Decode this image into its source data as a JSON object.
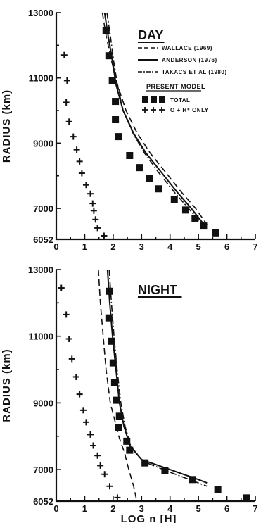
{
  "chart_data": [
    {
      "type": "scatter",
      "panel": "day",
      "title": "DAY",
      "xlabel": "",
      "ylabel": "RADIUS (km)",
      "xlim": [
        0,
        7
      ],
      "ylim": [
        6052,
        13000
      ],
      "x_ticks": [
        "0",
        "1",
        "2",
        "3",
        "4",
        "5",
        "6",
        "7"
      ],
      "y_ticks": [
        {
          "value": 6052,
          "label": "6052"
        },
        {
          "value": 7000,
          "label": "7000"
        },
        {
          "value": 9000,
          "label": "9000"
        },
        {
          "value": 11000,
          "label": "11000"
        },
        {
          "value": 13000,
          "label": "13000"
        }
      ],
      "legend": {
        "lines": [
          {
            "name": "WALLACE (1969)",
            "style": "dashed"
          },
          {
            "name": "ANDERSON (1976)",
            "style": "solid"
          },
          {
            "name": "TAKACS ET AL (1980)",
            "style": "dashdot"
          }
        ],
        "model_header": "PRESENT MODEL",
        "markers": [
          {
            "symbol": "square",
            "label": "TOTAL"
          },
          {
            "symbol": "plus",
            "label": "O + H⁺ ONLY"
          }
        ]
      },
      "series": [
        {
          "style": "dashed",
          "points": [
            [
              1.62,
              13000
            ],
            [
              1.75,
              12300
            ],
            [
              1.95,
              11500
            ],
            [
              2.15,
              10800
            ],
            [
              2.45,
              10000
            ],
            [
              2.85,
              9300
            ],
            [
              3.3,
              8700
            ],
            [
              3.85,
              8100
            ],
            [
              4.4,
              7500
            ],
            [
              4.9,
              7000
            ],
            [
              5.3,
              6500
            ]
          ]
        },
        {
          "style": "solid",
          "points": [
            [
              1.7,
              13000
            ],
            [
              1.82,
              12300
            ],
            [
              1.98,
              11500
            ],
            [
              2.1,
              10800
            ],
            [
              2.35,
              10000
            ],
            [
              2.72,
              9300
            ],
            [
              3.15,
              8700
            ],
            [
              3.7,
              8100
            ],
            [
              4.25,
              7500
            ],
            [
              4.75,
              7000
            ],
            [
              5.2,
              6500
            ]
          ]
        },
        {
          "style": "dashdot",
          "points": [
            [
              1.78,
              13000
            ],
            [
              1.9,
              12300
            ],
            [
              2.02,
              11500
            ],
            [
              2.15,
              10800
            ],
            [
              2.35,
              10000
            ],
            [
              2.7,
              9300
            ],
            [
              3.1,
              8700
            ],
            [
              3.6,
              8100
            ],
            [
              4.15,
              7500
            ],
            [
              4.65,
              7000
            ],
            [
              5.15,
              6500
            ]
          ]
        },
        {
          "style": "square",
          "points": [
            [
              1.75,
              12450
            ],
            [
              1.85,
              11680
            ],
            [
              1.97,
              10920
            ],
            [
              2.08,
              10280
            ],
            [
              2.08,
              9720
            ],
            [
              2.18,
              9200
            ],
            [
              2.58,
              8620
            ],
            [
              2.92,
              8250
            ],
            [
              3.28,
              7920
            ],
            [
              3.6,
              7600
            ],
            [
              4.15,
              7270
            ],
            [
              4.55,
              6950
            ],
            [
              4.88,
              6700
            ],
            [
              5.18,
              6460
            ],
            [
              5.6,
              6250
            ]
          ]
        },
        {
          "style": "plus",
          "points": [
            [
              0.28,
              11700
            ],
            [
              0.38,
              10920
            ],
            [
              0.35,
              10250
            ],
            [
              0.45,
              9660
            ],
            [
              0.6,
              9200
            ],
            [
              0.72,
              8800
            ],
            [
              0.82,
              8440
            ],
            [
              0.9,
              8080
            ],
            [
              1.05,
              7720
            ],
            [
              1.2,
              7450
            ],
            [
              1.28,
              7150
            ],
            [
              1.32,
              6930
            ],
            [
              1.38,
              6660
            ],
            [
              1.45,
              6400
            ],
            [
              1.68,
              6160
            ]
          ]
        }
      ]
    },
    {
      "type": "scatter",
      "panel": "night",
      "title": "NIGHT",
      "xlabel": "LOG n [H]",
      "ylabel": "RADIUS (km)",
      "xlim": [
        0,
        7
      ],
      "ylim": [
        6052,
        13000
      ],
      "x_ticks": [
        "0",
        "1",
        "2",
        "3",
        "4",
        "5",
        "6",
        "7"
      ],
      "y_ticks": [
        {
          "value": 6052,
          "label": "6052"
        },
        {
          "value": 7000,
          "label": "7000"
        },
        {
          "value": 9000,
          "label": "9000"
        },
        {
          "value": 11000,
          "label": "11000"
        },
        {
          "value": 13000,
          "label": "13000"
        }
      ],
      "series": [
        {
          "style": "dashed",
          "points": [
            [
              1.48,
              13000
            ],
            [
              1.55,
              12000
            ],
            [
              1.65,
              11000
            ],
            [
              1.75,
              10000
            ],
            [
              1.9,
              9000
            ],
            [
              2.05,
              8500
            ],
            [
              2.2,
              8000
            ],
            [
              2.4,
              7500
            ],
            [
              2.55,
              7000
            ],
            [
              2.72,
              6500
            ],
            [
              2.82,
              6100
            ]
          ]
        },
        {
          "style": "solid",
          "points": [
            [
              1.8,
              13000
            ],
            [
              1.88,
              12000
            ],
            [
              1.98,
              11000
            ],
            [
              2.1,
              10000
            ],
            [
              2.22,
              9000
            ],
            [
              2.38,
              8300
            ],
            [
              2.6,
              7700
            ],
            [
              3.0,
              7300
            ],
            [
              4.0,
              7000
            ],
            [
              5.0,
              6700
            ],
            [
              5.3,
              6600
            ]
          ]
        },
        {
          "style": "dashdot",
          "points": [
            [
              1.86,
              13000
            ],
            [
              1.94,
              12000
            ],
            [
              2.03,
              11000
            ],
            [
              2.14,
              10000
            ],
            [
              2.27,
              9000
            ],
            [
              2.42,
              8300
            ],
            [
              2.62,
              7700
            ],
            [
              3.05,
              7250
            ],
            [
              4.0,
              6920
            ],
            [
              5.0,
              6600
            ],
            [
              5.3,
              6500
            ]
          ]
        },
        {
          "style": "square",
          "points": [
            [
              1.88,
              12350
            ],
            [
              1.85,
              11550
            ],
            [
              1.95,
              10850
            ],
            [
              2.0,
              10200
            ],
            [
              2.05,
              9600
            ],
            [
              2.12,
              9080
            ],
            [
              2.22,
              8600
            ],
            [
              2.18,
              8250
            ],
            [
              2.48,
              7850
            ],
            [
              2.58,
              7580
            ],
            [
              3.12,
              7200
            ],
            [
              3.82,
              6960
            ],
            [
              4.78,
              6700
            ],
            [
              5.68,
              6400
            ],
            [
              6.68,
              6150
            ]
          ]
        },
        {
          "style": "plus",
          "points": [
            [
              0.18,
              12450
            ],
            [
              0.35,
              11650
            ],
            [
              0.45,
              10920
            ],
            [
              0.55,
              10320
            ],
            [
              0.7,
              9780
            ],
            [
              0.82,
              9260
            ],
            [
              0.95,
              8780
            ],
            [
              1.05,
              8420
            ],
            [
              1.2,
              8050
            ],
            [
              1.3,
              7720
            ],
            [
              1.45,
              7420
            ],
            [
              1.55,
              7120
            ],
            [
              1.7,
              6860
            ],
            [
              1.88,
              6500
            ],
            [
              2.15,
              6160
            ]
          ]
        }
      ]
    }
  ]
}
